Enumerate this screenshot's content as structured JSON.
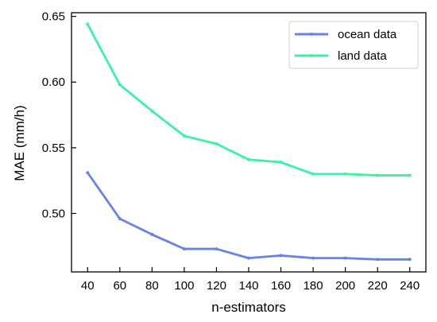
{
  "chart_data": {
    "type": "line",
    "xlabel": "n-estimators",
    "ylabel": "MAE (mm/h)",
    "x": [
      40,
      60,
      80,
      100,
      120,
      140,
      160,
      180,
      200,
      220,
      240
    ],
    "x_ticks": [
      "40",
      "60",
      "80",
      "100",
      "120",
      "140",
      "160",
      "180",
      "200",
      "220",
      "240"
    ],
    "y_ticks": [
      "0.50",
      "0.55",
      "0.60",
      "0.65"
    ],
    "xlim": [
      30,
      250
    ],
    "ylim": [
      0.4555,
      0.6528
    ],
    "grid": false,
    "legend_position": "top-right",
    "series": [
      {
        "name": "ocean data",
        "color": "#6a83e3",
        "values": [
          0.531,
          0.496,
          0.484,
          0.473,
          0.473,
          0.466,
          0.468,
          0.466,
          0.466,
          0.465,
          0.465
        ]
      },
      {
        "name": "land data",
        "color": "#3ef0a6",
        "values": [
          0.644,
          0.598,
          0.578,
          0.559,
          0.553,
          0.541,
          0.539,
          0.53,
          0.53,
          0.529,
          0.529
        ]
      }
    ]
  }
}
